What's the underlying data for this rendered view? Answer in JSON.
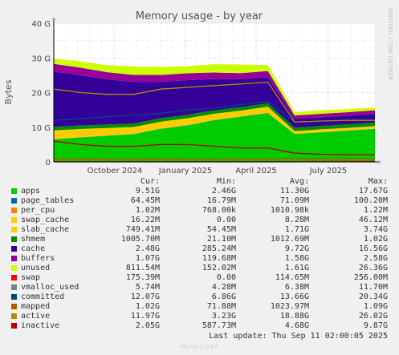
{
  "chart_data": {
    "type": "area",
    "title": "Memory usage - by year",
    "ylabel": "Bytes",
    "ylim": [
      0,
      40
    ],
    "y_unit": "G",
    "y_ticks": [
      "0",
      "10 G",
      "20 G",
      "30 G",
      "40 G"
    ],
    "x_ticks": [
      "October 2024",
      "January 2025",
      "April 2025",
      "July 2025"
    ],
    "grid": true,
    "side_label": "RRDTOOL / TOBI OETIKER",
    "column_headers": {
      "cur": "Cur:",
      "min": "Min:",
      "avg": "Avg:",
      "max": "Max:"
    },
    "x": [
      "2024-09",
      "2024-10",
      "2024-11",
      "2024-12",
      "2025-01",
      "2025-02",
      "2025-03",
      "2025-04",
      "2025-05",
      "2025-06",
      "2025-07",
      "2025-08",
      "2025-09"
    ],
    "series": [
      {
        "name": "apps",
        "color": "#00cc00",
        "stack": true,
        "cur": "9.51G",
        "min": "2.46G",
        "avg": "11.30G",
        "max": "17.67G",
        "values": [
          6.5,
          7.0,
          7.5,
          8.0,
          9.5,
          10.5,
          12.0,
          13.0,
          14.0,
          8.0,
          8.5,
          9.0,
          9.5
        ]
      },
      {
        "name": "page_tables",
        "color": "#0066b3",
        "stack": true,
        "cur": "64.45M",
        "min": "16.79M",
        "avg": "71.09M",
        "max": "100.20M",
        "values": [
          0.07,
          0.07,
          0.07,
          0.07,
          0.08,
          0.08,
          0.08,
          0.09,
          0.1,
          0.06,
          0.06,
          0.06,
          0.06
        ]
      },
      {
        "name": "per_cpu",
        "color": "#ff8000",
        "stack": true,
        "cur": "1.02M",
        "min": "768.00k",
        "avg": "1010.98k",
        "max": "1.22M",
        "values": [
          0.001,
          0.001,
          0.001,
          0.001,
          0.001,
          0.001,
          0.001,
          0.001,
          0.001,
          0.001,
          0.001,
          0.001,
          0.001
        ]
      },
      {
        "name": "swap_cache",
        "color": "#ffcc00",
        "stack": true,
        "cur": "16.22M",
        "min": "0.00",
        "avg": "8.28M",
        "max": "46.12M",
        "values": [
          0.01,
          0.01,
          0.01,
          0.01,
          0.01,
          0.01,
          0.01,
          0.01,
          0.01,
          0.01,
          0.02,
          0.02,
          0.02
        ]
      },
      {
        "name": "slab_cache",
        "color": "#ffcc00",
        "stack": true,
        "cur": "749.41M",
        "min": "54.45M",
        "avg": "1.71G",
        "max": "3.74G",
        "values": [
          2.5,
          2.4,
          2.2,
          2.0,
          2.0,
          2.0,
          1.8,
          1.7,
          1.8,
          0.8,
          0.8,
          0.75,
          0.75
        ]
      },
      {
        "name": "shmem",
        "color": "#008f00",
        "stack": true,
        "cur": "1005.70M",
        "min": "21.10M",
        "avg": "1012.69M",
        "max": "1.02G",
        "values": [
          1.0,
          1.0,
          1.0,
          1.0,
          1.0,
          1.0,
          1.0,
          1.0,
          1.0,
          1.0,
          1.0,
          1.0,
          1.0
        ]
      },
      {
        "name": "cache",
        "color": "#330099",
        "stack": true,
        "cur": "2.48G",
        "min": "285.24M",
        "avg": "9.72G",
        "max": "16.56G",
        "values": [
          16.0,
          14.5,
          13.0,
          12.0,
          10.5,
          10.0,
          9.0,
          8.0,
          7.5,
          2.5,
          2.5,
          2.5,
          2.5
        ]
      },
      {
        "name": "buffers",
        "color": "#990099",
        "stack": true,
        "cur": "1.07G",
        "min": "119.68M",
        "avg": "1.58G",
        "max": "2.58G",
        "values": [
          2.2,
          2.2,
          2.1,
          2.0,
          2.0,
          2.0,
          1.9,
          1.8,
          1.8,
          1.0,
          1.0,
          1.0,
          1.05
        ]
      },
      {
        "name": "unused",
        "color": "#ccff00",
        "stack": true,
        "cur": "811.54M",
        "min": "152.02M",
        "avg": "1.61G",
        "max": "26.36G",
        "values": [
          1.5,
          1.8,
          2.0,
          2.5,
          2.3,
          2.0,
          2.4,
          2.5,
          1.7,
          1.0,
          1.0,
          0.9,
          0.8
        ]
      },
      {
        "name": "swap",
        "color": "#ff0000",
        "stack": false,
        "cur": "175.39M",
        "min": "0.00",
        "avg": "114.65M",
        "max": "256.00M",
        "values": [
          0.1,
          0.1,
          0.1,
          0.1,
          0.1,
          0.1,
          0.1,
          0.1,
          0.1,
          0.12,
          0.15,
          0.17,
          0.17
        ]
      },
      {
        "name": "vmalloc_used",
        "color": "#808080",
        "stack": false,
        "cur": "5.74M",
        "min": "4.28M",
        "avg": "6.38M",
        "max": "11.70M",
        "values": [
          0.006,
          0.006,
          0.006,
          0.006,
          0.006,
          0.006,
          0.006,
          0.006,
          0.006,
          0.006,
          0.006,
          0.006,
          0.006
        ]
      },
      {
        "name": "committed",
        "color": "#00487d",
        "stack": false,
        "cur": "12.07G",
        "min": "6.86G",
        "avg": "13.66G",
        "max": "20.34G",
        "values": [
          12.0,
          12.5,
          13.0,
          13.5,
          14.0,
          15.0,
          15.5,
          16.5,
          17.5,
          11.5,
          11.8,
          12.0,
          12.07
        ]
      },
      {
        "name": "mapped",
        "color": "#b35a00",
        "stack": false,
        "cur": "1.02G",
        "min": "71.88M",
        "avg": "1023.97M",
        "max": "1.09G",
        "values": [
          1.0,
          1.0,
          1.0,
          1.0,
          1.0,
          1.0,
          1.0,
          1.0,
          1.0,
          1.0,
          1.0,
          1.0,
          1.02
        ]
      },
      {
        "name": "active",
        "color": "#b38f00",
        "stack": false,
        "cur": "11.97G",
        "min": "3.23G",
        "avg": "18.88G",
        "max": "26.02G",
        "values": [
          21.0,
          20.0,
          19.5,
          19.5,
          21.0,
          21.5,
          22.0,
          22.5,
          23.0,
          11.5,
          11.8,
          12.0,
          11.97
        ]
      },
      {
        "name": "inactive",
        "color": "#bd0000",
        "stack": false,
        "cur": "2.05G",
        "min": "587.73M",
        "avg": "4.68G",
        "max": "9.87G",
        "values": [
          6.0,
          5.0,
          4.5,
          4.5,
          5.0,
          5.0,
          4.5,
          4.0,
          4.0,
          2.5,
          2.2,
          2.1,
          2.05
        ]
      }
    ]
  },
  "footer": {
    "last_update": "Last update: Thu Sep 11 02:00:05 2025",
    "munin": "Munin 2.0.67"
  }
}
